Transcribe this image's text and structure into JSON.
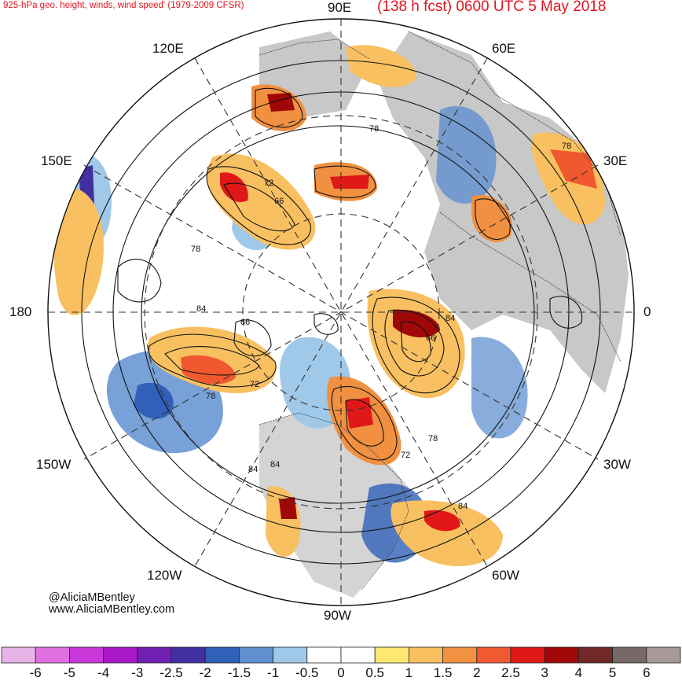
{
  "header": {
    "title_left": "925-hPa geo. height, winds, wind speed' (1979-2009 CFSR)",
    "title_right": "(138 h fcst) 0600 UTC 5 May 2018"
  },
  "longitude_labels": [
    {
      "id": "90e",
      "text": "90E"
    },
    {
      "id": "60e",
      "text": "60E"
    },
    {
      "id": "120e",
      "text": "120E"
    },
    {
      "id": "150e",
      "text": "150E"
    },
    {
      "id": "30e",
      "text": "30E"
    },
    {
      "id": "180",
      "text": "180"
    },
    {
      "id": "0",
      "text": "0"
    },
    {
      "id": "150w",
      "text": "150W"
    },
    {
      "id": "30w",
      "text": "30W"
    },
    {
      "id": "120w",
      "text": "120W"
    },
    {
      "id": "60w",
      "text": "60W"
    },
    {
      "id": "90w",
      "text": "90W"
    }
  ],
  "contour_labels": [
    "72",
    "66",
    "78",
    "78",
    "78",
    "84",
    "66",
    "72",
    "78",
    "66",
    "84",
    "78",
    "72",
    "84",
    "84",
    "84"
  ],
  "credits": {
    "handle": "@AliciaMBentley",
    "site": "www.AliciaMBentley.com"
  },
  "colorbar": {
    "ticks": [
      "-6",
      "-5",
      "-4",
      "-3",
      "-2.5",
      "-2",
      "-1.5",
      "-1",
      "-0.5",
      "0",
      "0.5",
      "1",
      "1.5",
      "2",
      "2.5",
      "3",
      "4",
      "5",
      "6"
    ],
    "colors": [
      "#e8b4e8",
      "#e070e0",
      "#c838d8",
      "#a818c8",
      "#7020b0",
      "#4030a0",
      "#3060b8",
      "#6090d0",
      "#a0c8e8",
      "#ffffff",
      "#ffffff",
      "#ffe870",
      "#f8c060",
      "#f09040",
      "#f05830",
      "#e01818",
      "#a00808",
      "#702828",
      "#786868",
      "#a89898"
    ]
  }
}
